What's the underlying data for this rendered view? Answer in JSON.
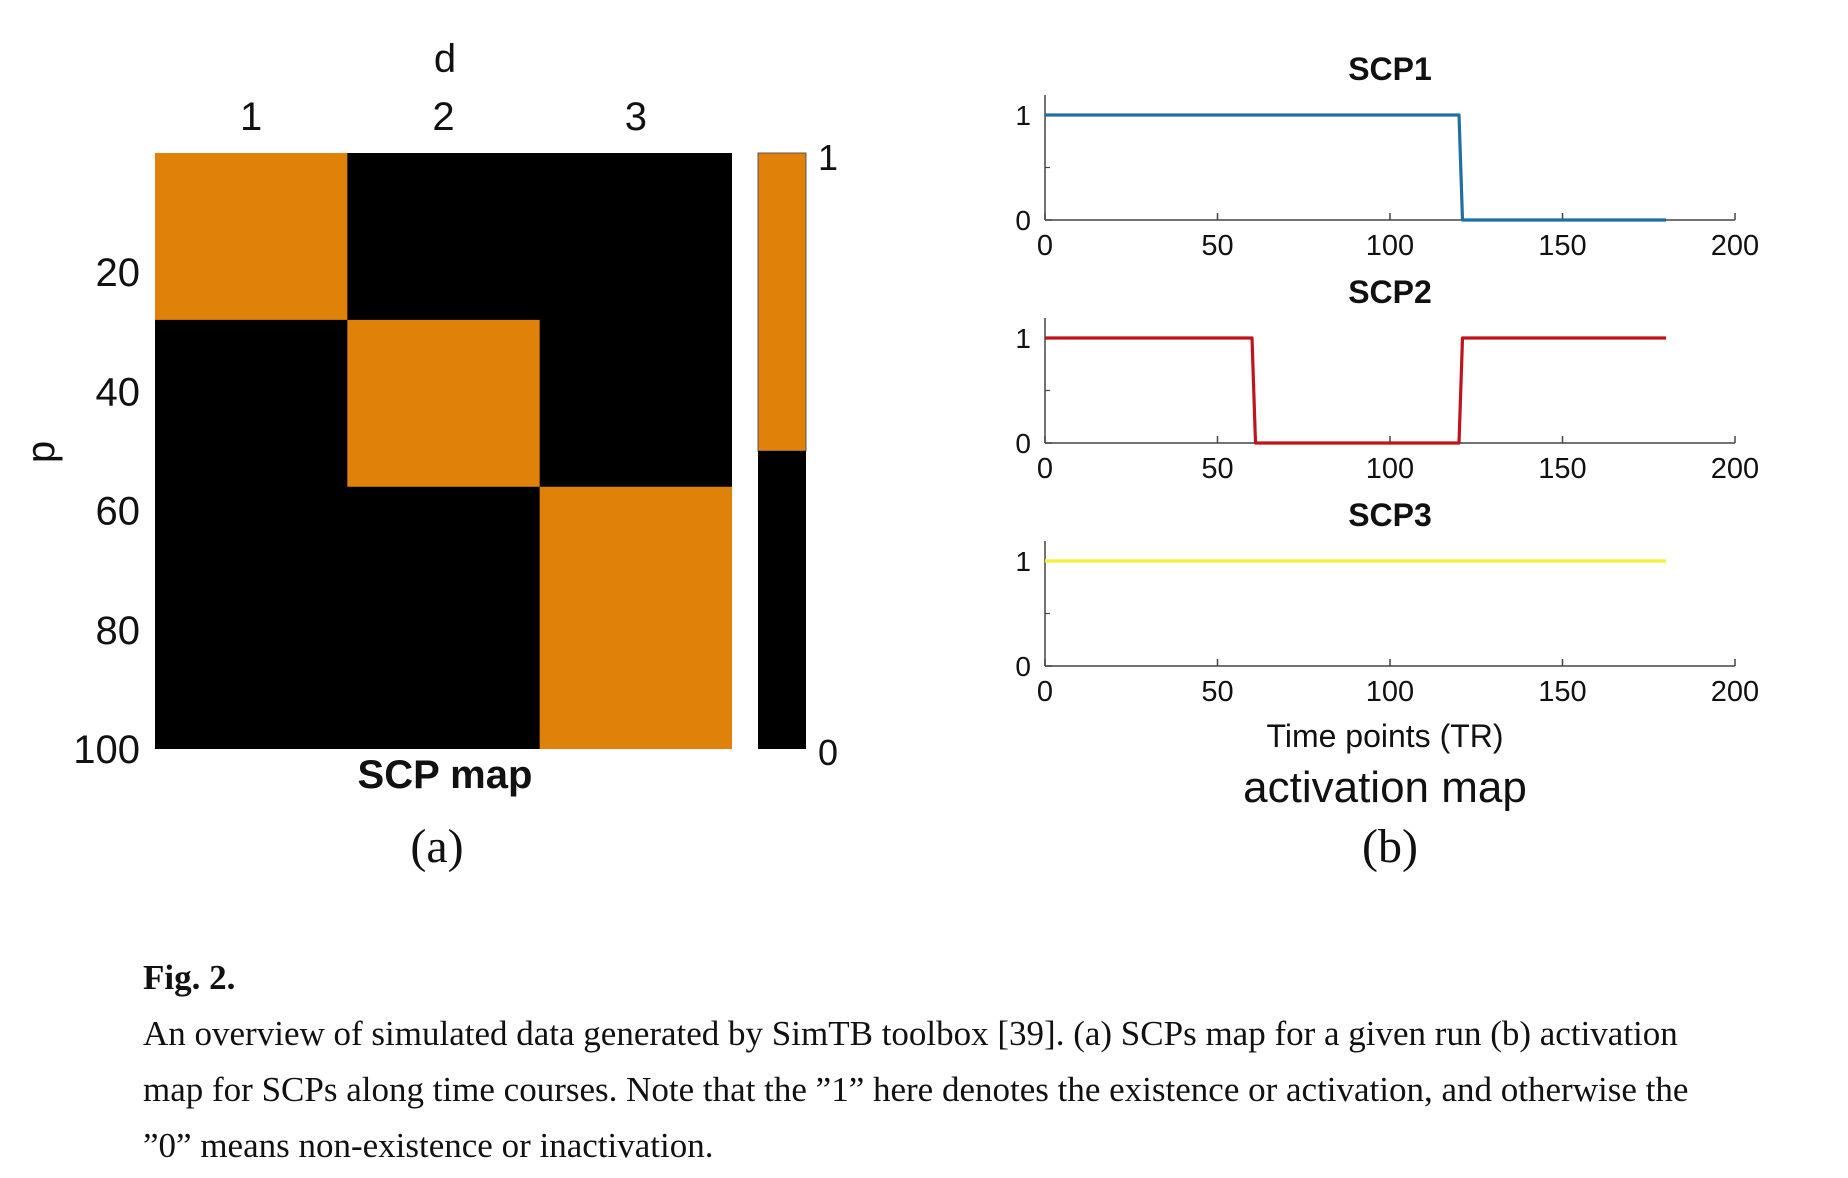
{
  "figure": {
    "label": "Fig. 2.",
    "caption": "An overview of simulated data generated by SimTB toolbox [39]. (a) SCPs map for a given run (b) activation map for SCPs along time courses. Note that the ”1” here denotes the existence or activation, and otherwise the ”0” means non-existence or inactivation."
  },
  "colors": {
    "orange": "#e0820a",
    "black": "#000000",
    "scp1": "#1f6fa0",
    "scp2": "#c0141c",
    "scp3": "#f2f03c"
  },
  "chart_data": [
    {
      "type": "heatmap",
      "panel": "(a)",
      "title": "SCP map",
      "xlabel": "d",
      "ylabel": "p",
      "x_ticks": [
        "1",
        "2",
        "3"
      ],
      "y_ticks": [
        "20",
        "40",
        "60",
        "80",
        "100"
      ],
      "colorbar": {
        "ticks": [
          "1",
          "0"
        ],
        "min": 0,
        "max": 1
      },
      "rows_range": [
        1,
        100
      ],
      "blocks": [
        {
          "d": 1,
          "p_start": 1,
          "p_end": 28,
          "value": 1
        },
        {
          "d": 2,
          "p_start": 29,
          "p_end": 56,
          "value": 1
        },
        {
          "d": 3,
          "p_start": 57,
          "p_end": 100,
          "value": 1
        }
      ]
    },
    {
      "type": "line",
      "panel": "(b)",
      "title": "activation map",
      "xlabel": "Time points (TR)",
      "xlim": [
        0,
        200
      ],
      "ylim": [
        0,
        1
      ],
      "x_ticks": [
        0,
        50,
        100,
        150,
        200
      ],
      "y_ticks": [
        0,
        1
      ],
      "series": [
        {
          "name": "SCP1",
          "points": [
            [
              0,
              1
            ],
            [
              120,
              1
            ],
            [
              121,
              0
            ],
            [
              180,
              0
            ]
          ]
        },
        {
          "name": "SCP2",
          "points": [
            [
              0,
              1
            ],
            [
              60,
              1
            ],
            [
              61,
              0
            ],
            [
              120,
              0
            ],
            [
              121,
              1
            ],
            [
              180,
              1
            ]
          ]
        },
        {
          "name": "SCP3",
          "points": [
            [
              0,
              1
            ],
            [
              180,
              1
            ]
          ]
        }
      ]
    }
  ]
}
